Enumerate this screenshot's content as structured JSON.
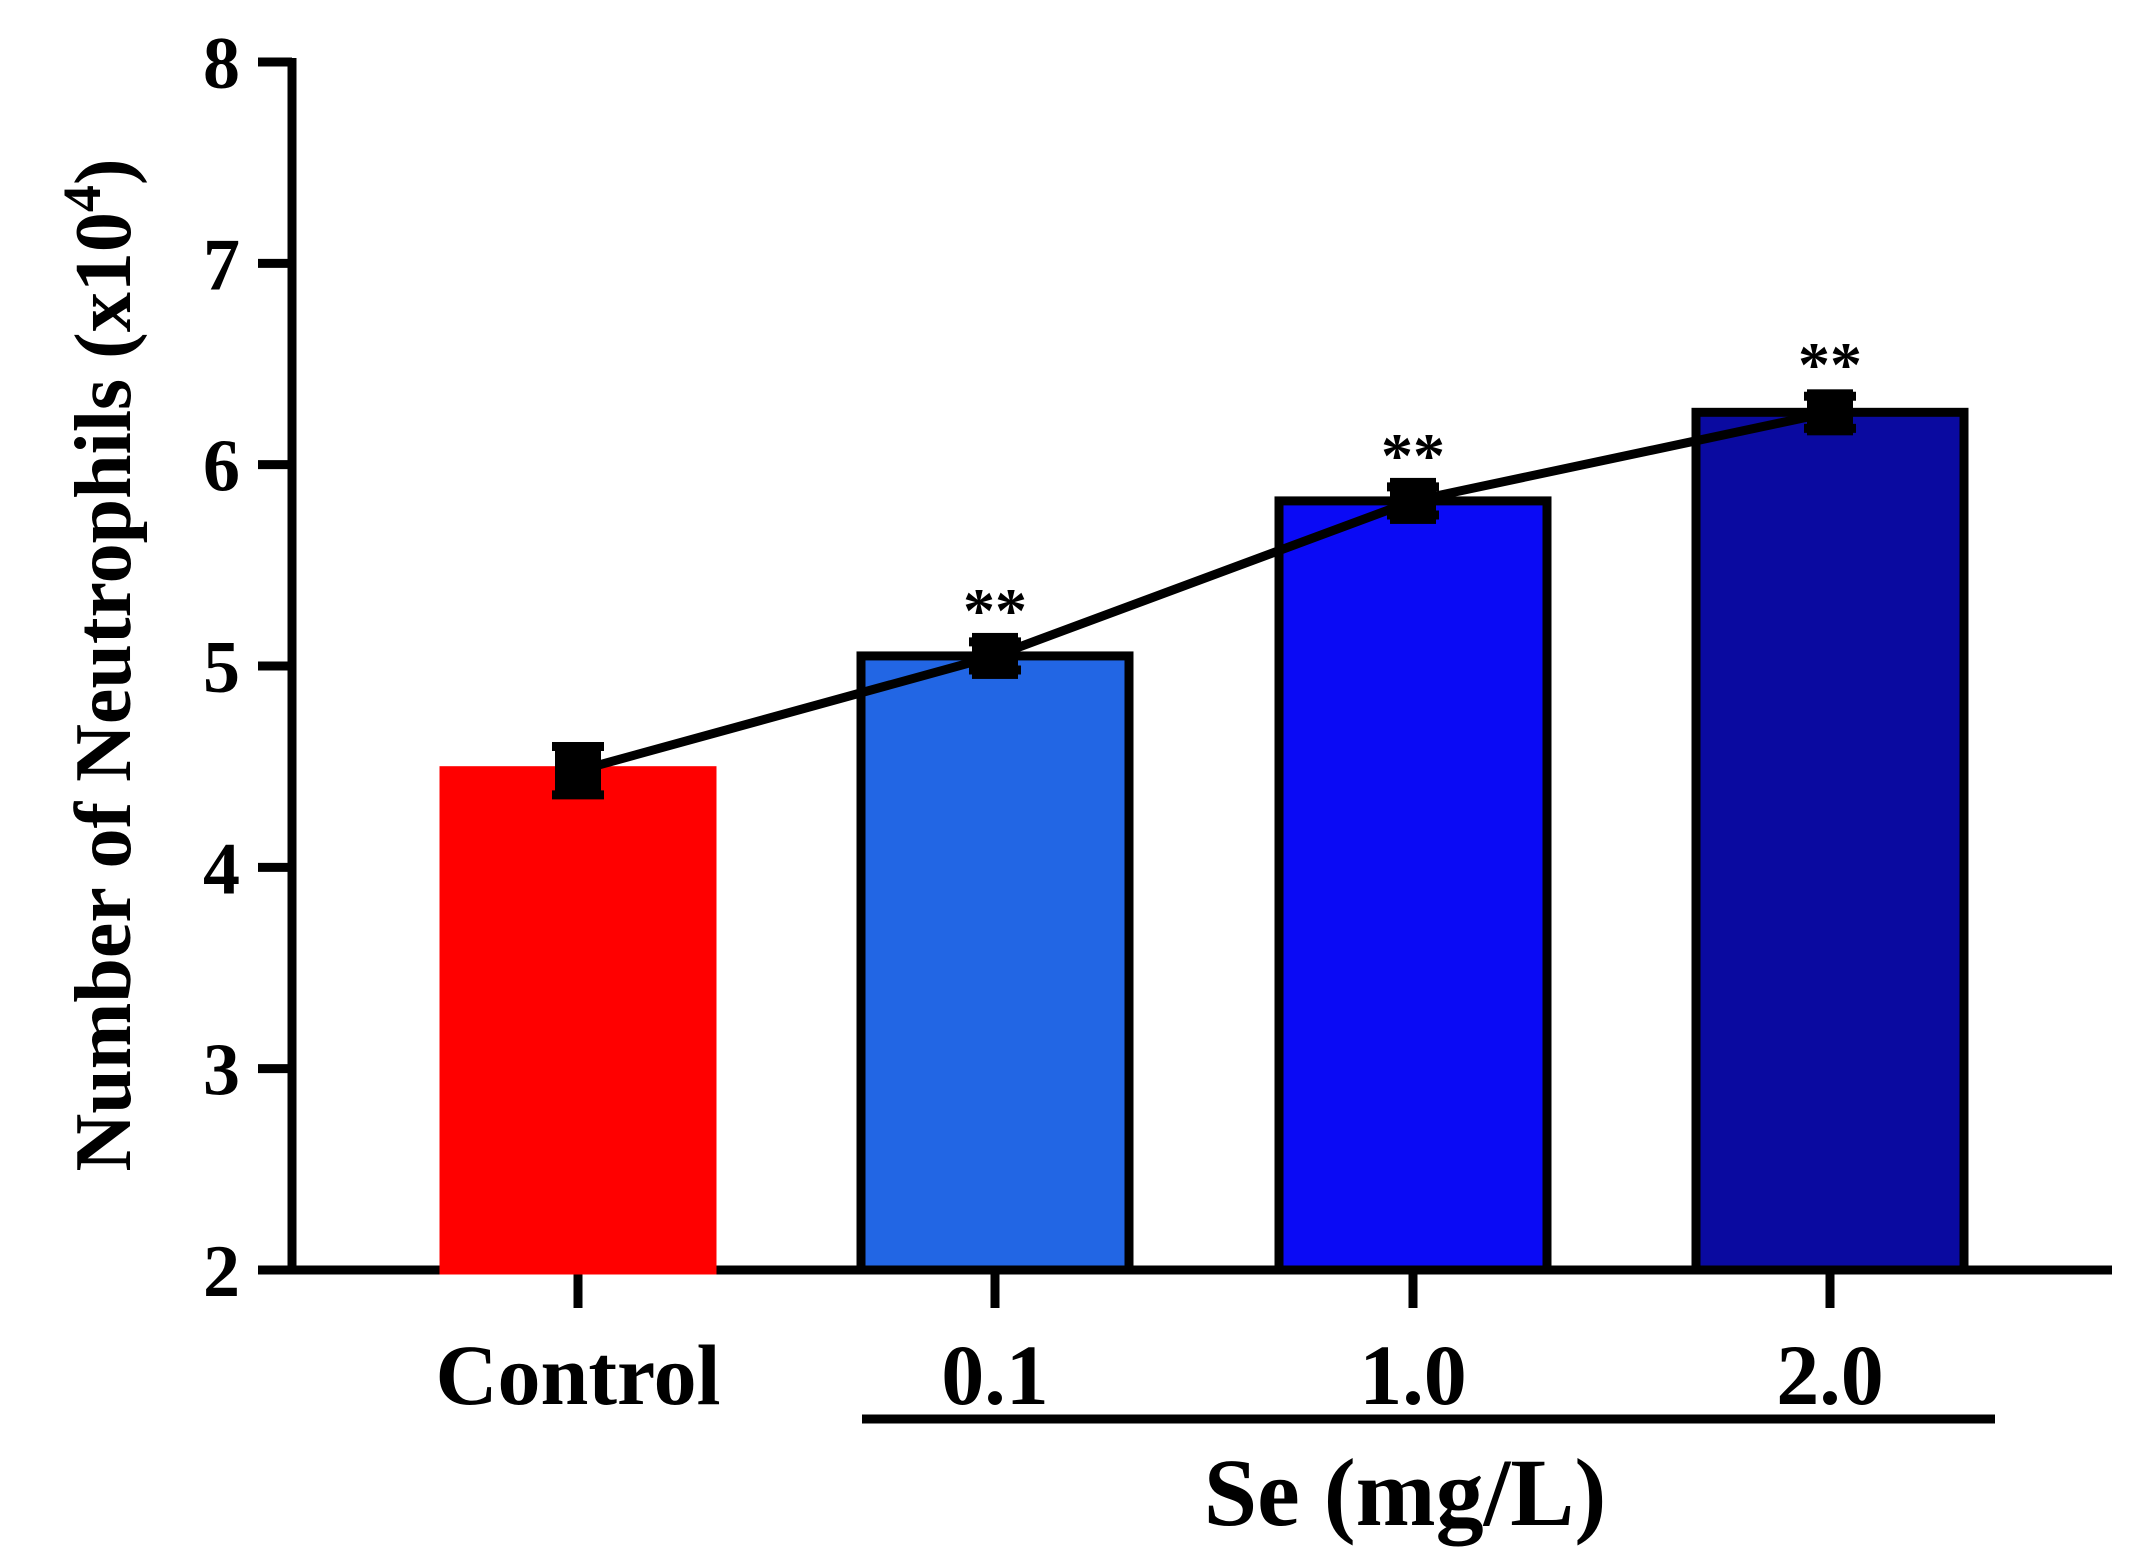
{
  "chart_data": {
    "type": "bar",
    "title": "",
    "categories": [
      "Control",
      "0.1",
      "1.0",
      "2.0"
    ],
    "values": [
      4.48,
      5.05,
      5.82,
      6.26
    ],
    "errors": [
      0.12,
      0.07,
      0.07,
      0.08
    ],
    "significance": [
      "",
      "**",
      "**",
      "**"
    ],
    "colors": [
      "#ff0000",
      "#2266e4",
      "#0a0af5",
      "#0a0aa0"
    ],
    "overlay_line": {
      "values": [
        4.48,
        5.05,
        5.82,
        6.26
      ],
      "color": "#000000"
    },
    "ylabel": "Number of  Neutrophils (x10",
    "ylabel_sup": "4",
    "ylabel_close": ")",
    "xgroup_label": "Se (mg/L)",
    "yticks": [
      2,
      3,
      4,
      5,
      6,
      7,
      8
    ],
    "ylim": [
      2,
      8
    ],
    "grid": false,
    "legend": "none"
  }
}
